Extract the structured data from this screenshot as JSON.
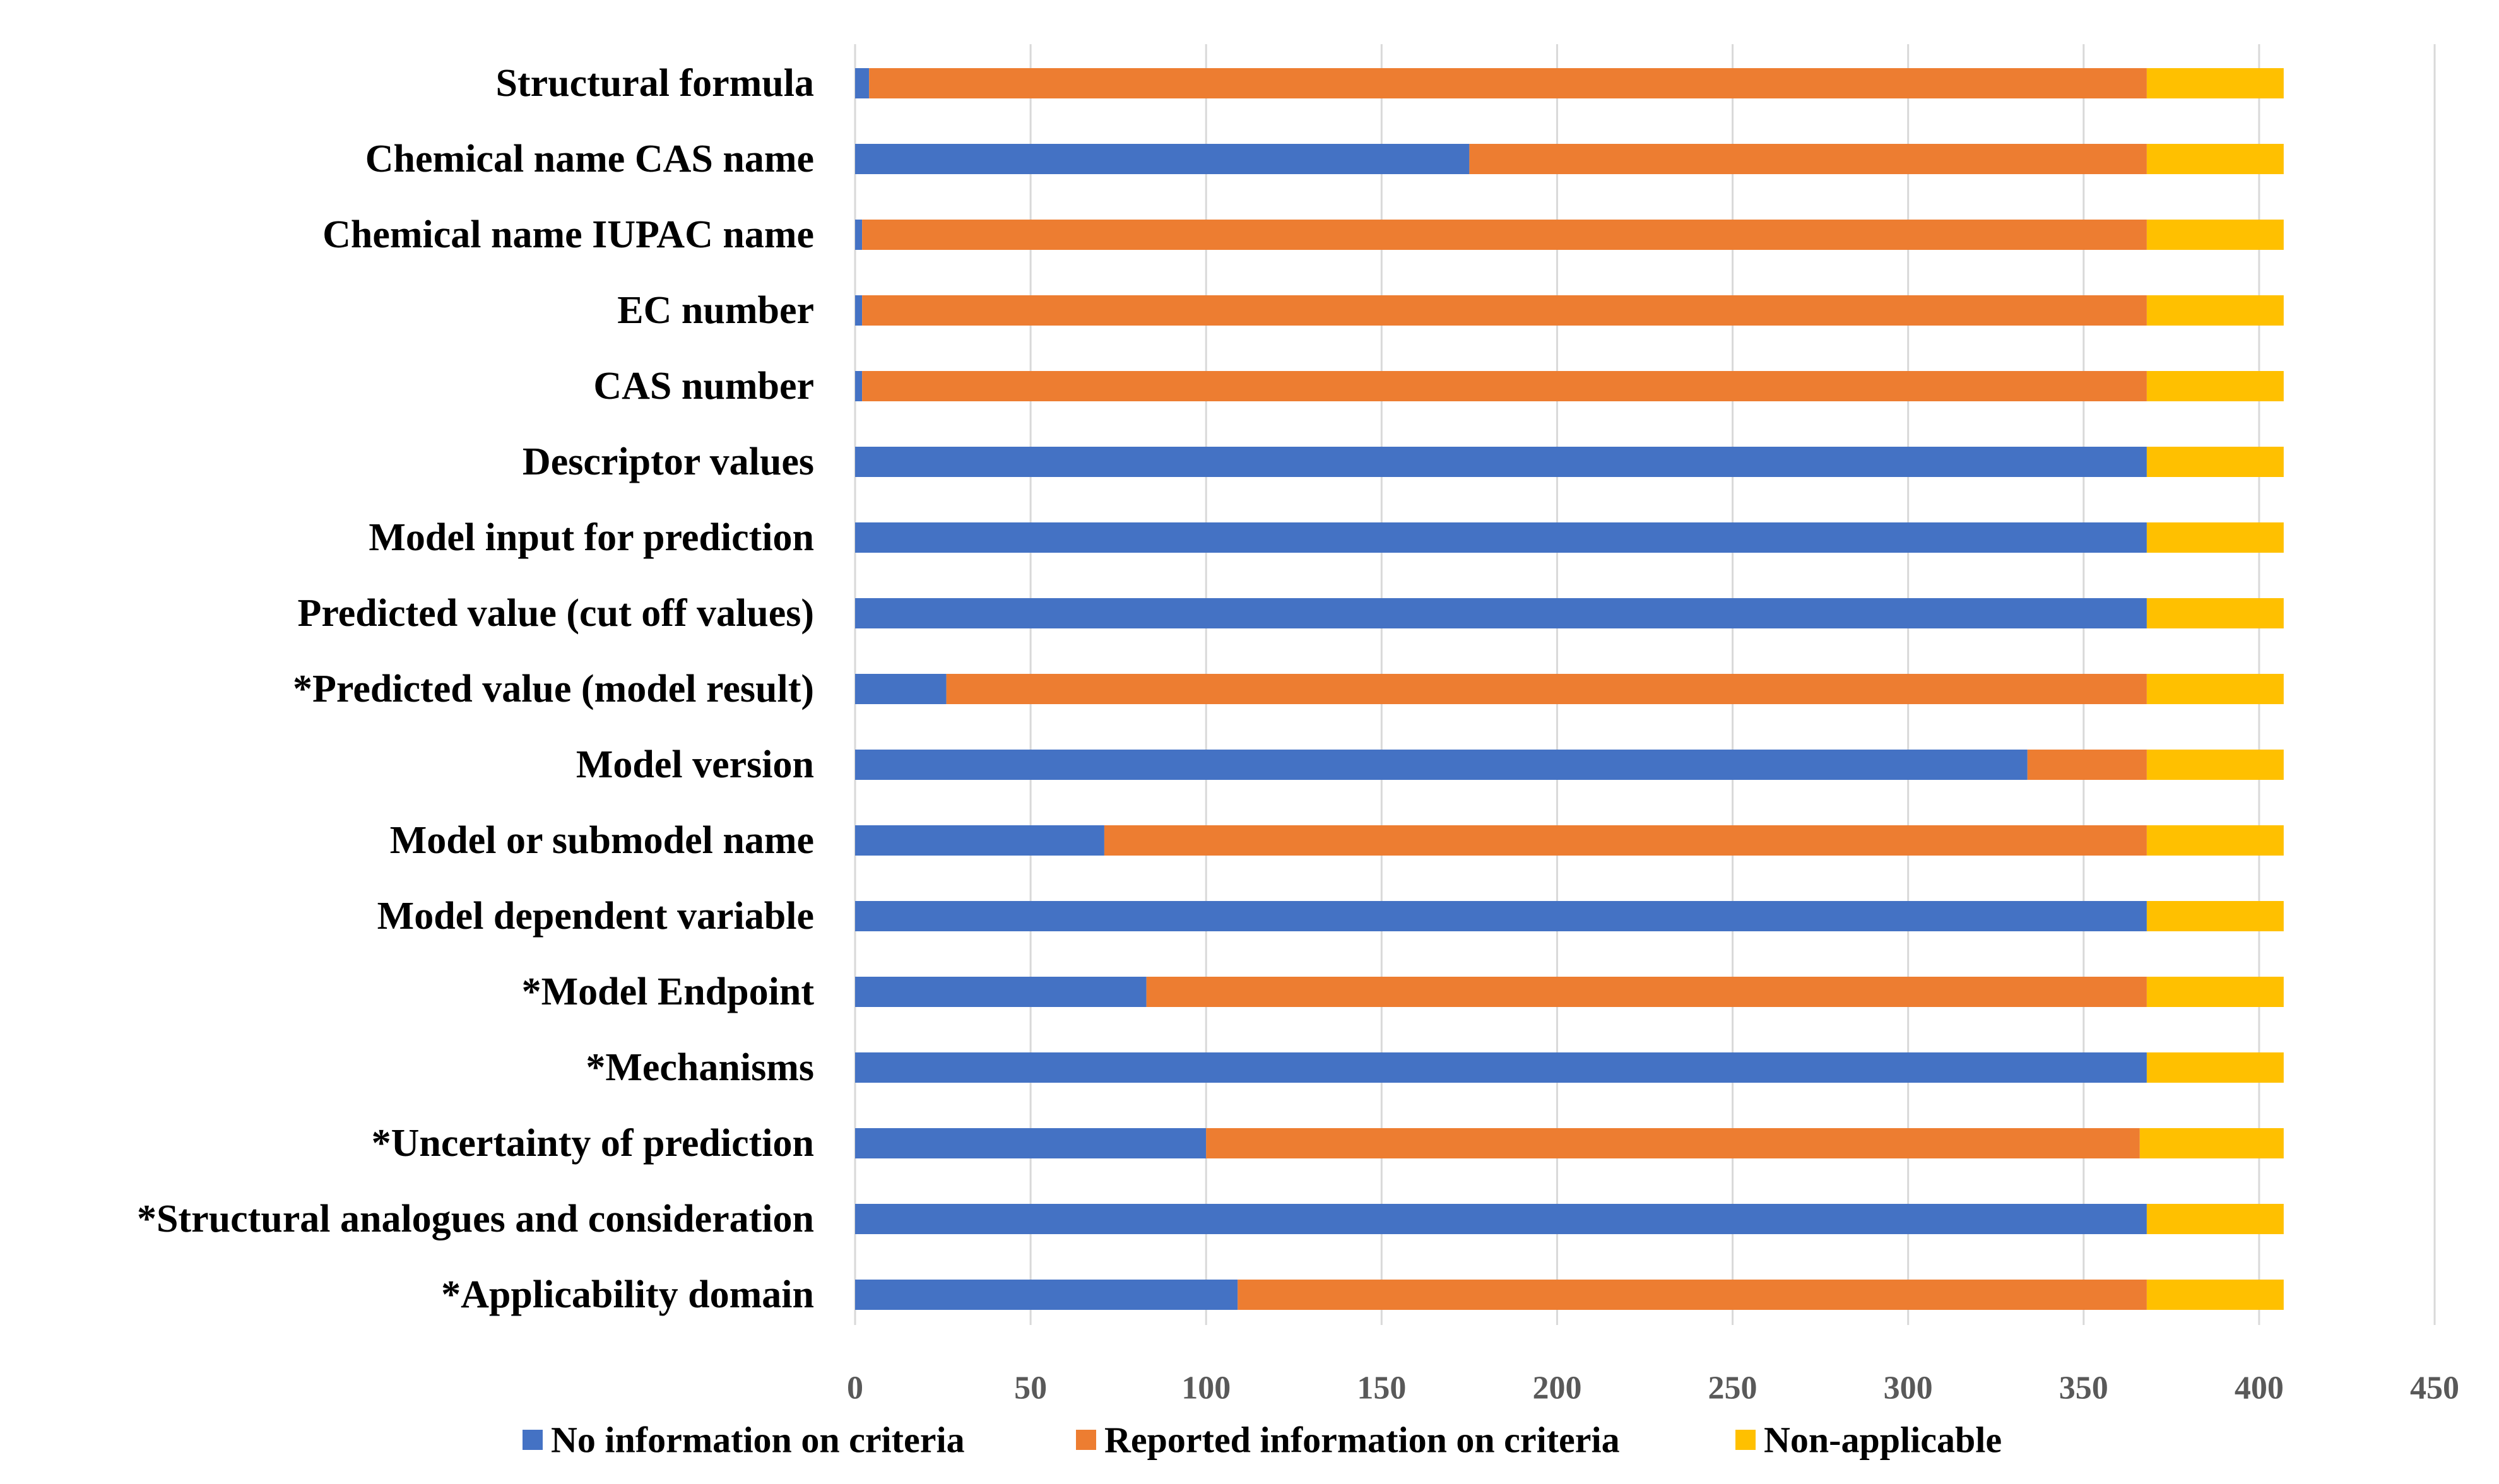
{
  "chart_data": {
    "type": "bar",
    "orientation": "horizontal",
    "stacked": true,
    "title": "",
    "xlabel": "",
    "ylabel": "",
    "xlim": [
      0,
      450
    ],
    "x_ticks": [
      0,
      50,
      100,
      150,
      200,
      250,
      300,
      350,
      400,
      450
    ],
    "grid": true,
    "legend_position": "bottom",
    "categories": [
      "Structural formula",
      "Chemical name CAS name",
      "Chemical name IUPAC name",
      "EC number",
      "CAS number",
      "Descriptor values",
      "Model input for prediction",
      "Predicted value (cut off values)",
      "*Predicted value (model result)",
      "Model version",
      "Model or submodel name",
      "Model dependent variable",
      "*Model Endpoint",
      "*Mechanisms",
      "*Uncertainty of prediction",
      "*Structural analogues and consideration",
      "*Applicability domain"
    ],
    "series": [
      {
        "name": "No information on criteria",
        "color": "#4472C4",
        "values": [
          4,
          175,
          2,
          2,
          2,
          368,
          368,
          368,
          26,
          334,
          71,
          368,
          83,
          368,
          100,
          368,
          109
        ]
      },
      {
        "name": "Reported information on criteria",
        "color": "#ED7D31",
        "values": [
          364,
          193,
          366,
          366,
          366,
          0,
          0,
          0,
          342,
          34,
          297,
          0,
          285,
          0,
          266,
          0,
          259
        ]
      },
      {
        "name": "Non-applicable",
        "color": "#FFC000",
        "values": [
          39,
          39,
          39,
          39,
          39,
          39,
          39,
          39,
          39,
          39,
          39,
          39,
          39,
          39,
          41,
          39,
          39
        ]
      }
    ]
  }
}
